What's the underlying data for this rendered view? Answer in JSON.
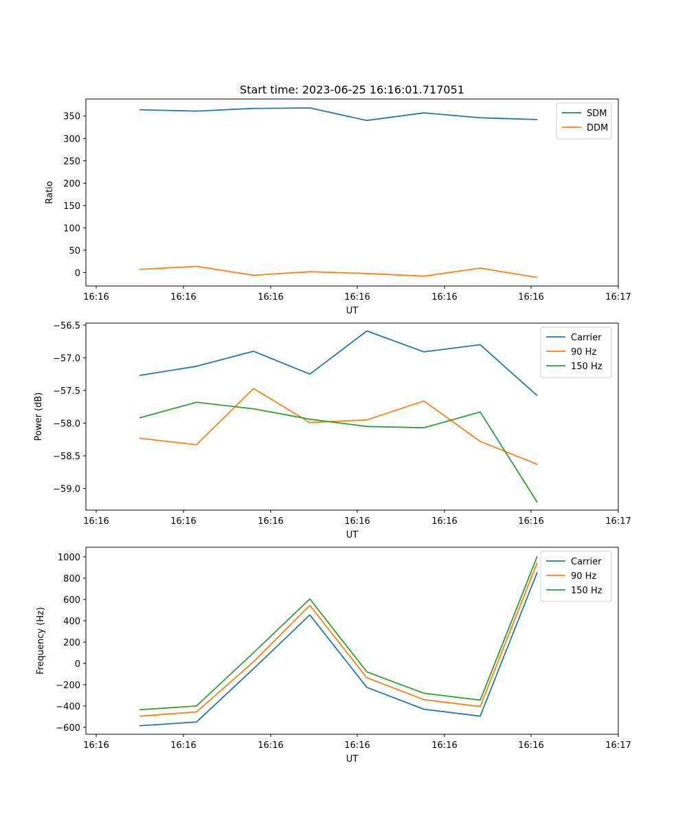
{
  "figure": {
    "title": "Start time: 2023-06-25 16:16:01.717051"
  },
  "chart_data": [
    {
      "type": "line",
      "xlabel": "UT",
      "ylabel": "Ratio",
      "x_tick_labels": [
        "16:16",
        "16:16",
        "16:16",
        "16:16",
        "16:16",
        "16:16",
        "16:17"
      ],
      "y_ticks": [
        0,
        50,
        100,
        150,
        200,
        250,
        300,
        350
      ],
      "ylim": [
        -30,
        388
      ],
      "legend_position": "upper right",
      "grid": false,
      "series": [
        {
          "name": "SDM",
          "color": "#1f77b4",
          "values": [
            364,
            361,
            367,
            368,
            340,
            357,
            346,
            342
          ]
        },
        {
          "name": "DDM",
          "color": "#ff7f0e",
          "values": [
            7,
            14,
            -6,
            2,
            -2,
            -8,
            10,
            -11
          ]
        }
      ]
    },
    {
      "type": "line",
      "xlabel": "UT",
      "ylabel": "Power (dB)",
      "x_tick_labels": [
        "16:16",
        "16:16",
        "16:16",
        "16:16",
        "16:16",
        "16:16",
        "16:17"
      ],
      "y_ticks": [
        -59.0,
        -58.5,
        -58.0,
        -57.5,
        -57.0,
        -56.5
      ],
      "y_tick_labels": [
        "−59.0",
        "−58.5",
        "−58.0",
        "−57.5",
        "−57.0",
        "−56.5"
      ],
      "ylim": [
        -59.33,
        -56.47
      ],
      "legend_position": "upper right",
      "grid": false,
      "series": [
        {
          "name": "Carrier",
          "color": "#1f77b4",
          "values": [
            -57.27,
            -57.13,
            -56.9,
            -57.25,
            -56.59,
            -56.91,
            -56.8,
            -57.58
          ]
        },
        {
          "name": "90 Hz",
          "color": "#ff7f0e",
          "values": [
            -58.23,
            -58.33,
            -57.47,
            -57.99,
            -57.95,
            -57.66,
            -58.28,
            -58.63
          ]
        },
        {
          "name": "150 Hz",
          "color": "#2ca02c",
          "values": [
            -57.92,
            -57.68,
            -57.78,
            -57.94,
            -58.05,
            -58.07,
            -57.83,
            -59.21
          ]
        }
      ]
    },
    {
      "type": "line",
      "xlabel": "UT",
      "ylabel": "Frequency (Hz)",
      "x_tick_labels": [
        "16:16",
        "16:16",
        "16:16",
        "16:16",
        "16:16",
        "16:16",
        "16:17"
      ],
      "y_ticks": [
        -600,
        -400,
        -200,
        0,
        200,
        400,
        600,
        800,
        1000
      ],
      "y_tick_labels": [
        "−600",
        "−400",
        "−200",
        "0",
        "200",
        "400",
        "600",
        "800",
        "1000"
      ],
      "ylim": [
        -665,
        1090
      ],
      "legend_position": "upper right",
      "grid": false,
      "series": [
        {
          "name": "Carrier",
          "color": "#1f77b4",
          "values": [
            -585,
            -550,
            -50,
            455,
            -225,
            -430,
            -495,
            855
          ]
        },
        {
          "name": "90 Hz",
          "color": "#ff7f0e",
          "values": [
            -495,
            -455,
            15,
            545,
            -135,
            -340,
            -405,
            945
          ]
        },
        {
          "name": "150 Hz",
          "color": "#2ca02c",
          "values": [
            -435,
            -400,
            100,
            605,
            -80,
            -280,
            -345,
            1005
          ]
        }
      ]
    }
  ]
}
